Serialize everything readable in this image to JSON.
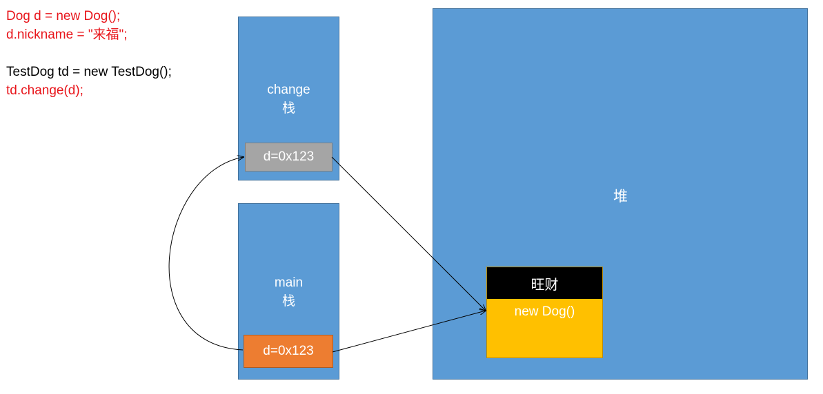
{
  "code": {
    "line1": "Dog d = new Dog();",
    "line2": "d.nickname = \"来福\";",
    "line3": "TestDog td = new TestDog();",
    "line4": "td.change(d);"
  },
  "change_stack": {
    "name": "change",
    "type": "栈",
    "var": "d=0x123"
  },
  "main_stack": {
    "name": "main",
    "type": "栈",
    "var": "d=0x123"
  },
  "heap": {
    "label": "堆",
    "object": {
      "name": "旺财",
      "type": "new Dog()"
    }
  },
  "colors": {
    "code_red": "#e8151b",
    "code_black": "#000000",
    "stack_blue": "#5b9bd5",
    "change_var_gray": "#a5a5a5",
    "main_var_orange": "#ed7d31",
    "object_yellow": "#ffc000",
    "object_header_black": "#000000"
  }
}
